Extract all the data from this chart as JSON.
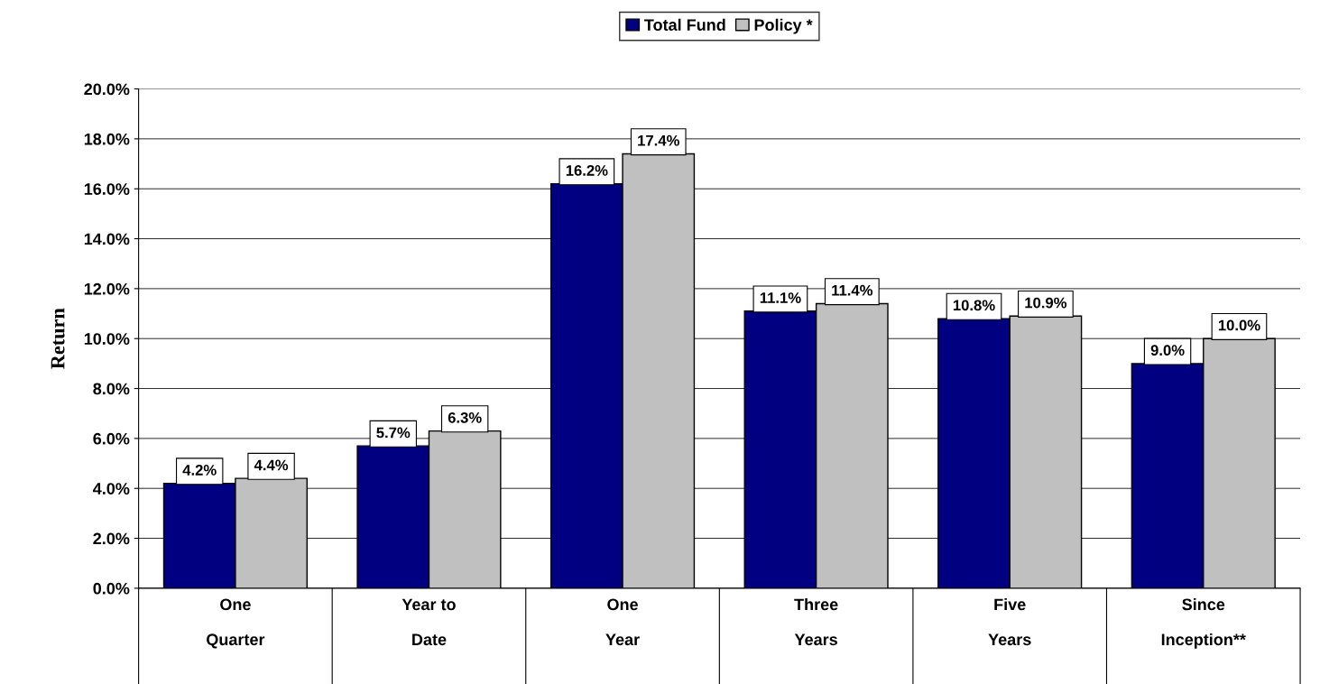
{
  "chart_data": {
    "type": "bar",
    "ylabel": "Return",
    "categories": [
      "One\n\nQuarter",
      "Year to\n\nDate",
      "One\n\nYear",
      "Three\n\nYears",
      "Five\n\nYears",
      "Since\n\nInception**"
    ],
    "series": [
      {
        "name": "Total Fund",
        "color": "#000080",
        "values": [
          4.2,
          5.7,
          16.2,
          11.1,
          10.8,
          9.0
        ],
        "value_labels": [
          "4.2%",
          "5.7%",
          "16.2%",
          "11.1%",
          "10.8%",
          "9.0%"
        ]
      },
      {
        "name": "Policy *",
        "color": "#c0c0c0",
        "values": [
          4.4,
          6.3,
          17.4,
          11.4,
          10.9,
          10.0
        ],
        "value_labels": [
          "4.4%",
          "6.3%",
          "17.4%",
          "11.4%",
          "10.9%",
          "10.0%"
        ]
      }
    ],
    "ylim": [
      0,
      20
    ],
    "yticks": [
      {
        "value": 0,
        "label": "0.0%"
      },
      {
        "value": 2,
        "label": "2.0%"
      },
      {
        "value": 4,
        "label": "4.0%"
      },
      {
        "value": 6,
        "label": "6.0%"
      },
      {
        "value": 8,
        "label": "8.0%"
      },
      {
        "value": 10,
        "label": "10.0%"
      },
      {
        "value": 12,
        "label": "12.0%"
      },
      {
        "value": 14,
        "label": "14.0%"
      },
      {
        "value": 16,
        "label": "16.0%"
      },
      {
        "value": 18,
        "label": "18.0%"
      },
      {
        "value": 20,
        "label": "20.0%"
      }
    ],
    "grid": "y",
    "legend": "top"
  }
}
